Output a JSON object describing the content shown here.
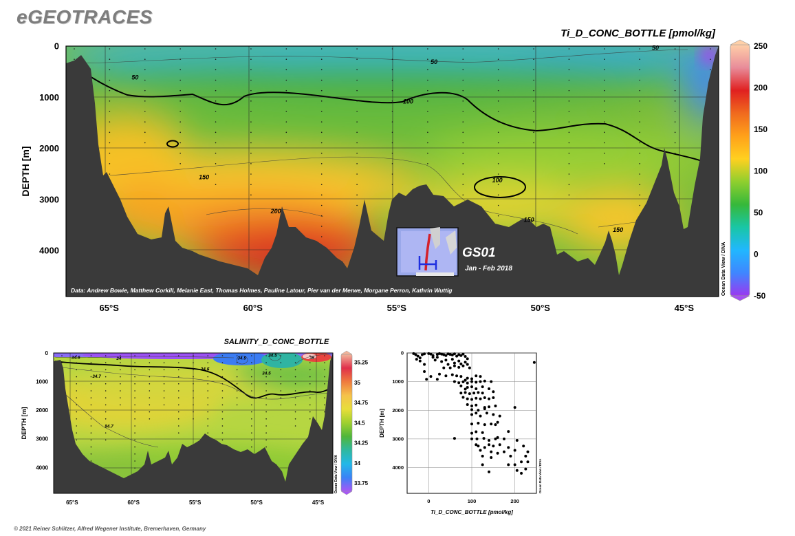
{
  "app_title": "eGEOTRACES",
  "footer": "© 2021 Reiner Schlitzer, Alfred Wegener Institute, Bremerhaven, Germany",
  "watermark": "Ocean Data View / DIVA",
  "chart_data": [
    {
      "type": "heatmap",
      "title": "Ti_D_CONC_BOTTLE [pmol/kg]",
      "ylabel": "DEPTH [m]",
      "xlabel": "",
      "xlim": [
        66.5,
        43.8
      ],
      "ylim": [
        4900,
        0
      ],
      "x_tick_values": [
        65,
        60,
        55,
        50,
        45
      ],
      "x_tick_labels": [
        "65°S",
        "60°S",
        "55°S",
        "50°S",
        "45°S"
      ],
      "y_tick_values": [
        0,
        1000,
        2000,
        3000,
        4000
      ],
      "y_tick_labels": [
        "0",
        "1000",
        "2000",
        "3000",
        "4000"
      ],
      "colorbar": {
        "range": [
          -50,
          250
        ],
        "tick_values": [
          250,
          200,
          150,
          100,
          50,
          0,
          -50
        ],
        "tick_labels": [
          "250",
          "200",
          "150",
          "100",
          "50",
          "0",
          "-50"
        ],
        "colors": [
          "#9b38f0",
          "#3f86ff",
          "#21b7ff",
          "#19c6a6",
          "#36b83a",
          "#8fcf2e",
          "#ffd020",
          "#ffa11a",
          "#f06a1e",
          "#e02020",
          "#e88c9a",
          "#ffcfa8"
        ]
      },
      "contour_labels": [
        {
          "text": "50",
          "x": 64.1,
          "y": 610
        },
        {
          "text": "50",
          "x": 53.7,
          "y": 310
        },
        {
          "text": "50",
          "x": 46.0,
          "y": 30
        },
        {
          "text": "100",
          "x": 54.6,
          "y": 1080
        },
        {
          "text": "100",
          "x": 51.5,
          "y": 2620
        },
        {
          "text": "150",
          "x": 61.7,
          "y": 2560
        },
        {
          "text": "150",
          "x": 50.4,
          "y": 3400
        },
        {
          "text": "150",
          "x": 47.3,
          "y": 3590
        },
        {
          "text": "200",
          "x": 59.2,
          "y": 3230
        }
      ],
      "grid": true,
      "credits": "Data: Andrew Bowie, Matthew Corkill, Melanie East, Thomas Holmes, Pauline Latour, Pier van der Merwe, Morgane Perron, Kathrin Wuttig",
      "inset": {
        "cruise": "GS01",
        "dates": "Jan - Feb 2018"
      }
    },
    {
      "type": "heatmap",
      "title": "SALINITY_D_CONC_BOTTLE",
      "ylabel": "DEPTH [m]",
      "xlim": [
        66.5,
        43.8
      ],
      "ylim": [
        4900,
        0
      ],
      "x_tick_values": [
        65,
        60,
        55,
        50,
        45
      ],
      "x_tick_labels": [
        "65°S",
        "60°S",
        "55°S",
        "50°S",
        "45°S"
      ],
      "y_tick_values": [
        0,
        1000,
        2000,
        3000,
        4000
      ],
      "y_tick_labels": [
        "0",
        "1000",
        "2000",
        "3000",
        "4000"
      ],
      "colorbar": {
        "range": [
          33.65,
          35.35
        ],
        "tick_values": [
          35.25,
          35,
          34.75,
          34.5,
          34.25,
          34,
          33.75
        ],
        "tick_labels": [
          "35.25",
          "35",
          "34.75",
          "34.5",
          "34.25",
          "34",
          "33.75"
        ],
        "colors": [
          "#a855f7",
          "#3b82f6",
          "#22b8e8",
          "#2fb8a0",
          "#4fb63a",
          "#9fd02f",
          "#e8de3a",
          "#f5c24a",
          "#ef7b3e",
          "#e0304a",
          "#f2b49a"
        ]
      },
      "contour_labels": [
        {
          "text": "34.6",
          "x": 64.7,
          "y": 150
        },
        {
          "text": "34",
          "x": 61.2,
          "y": 180
        },
        {
          "text": "34.5",
          "x": 54.2,
          "y": 560
        },
        {
          "text": "34.5",
          "x": 51.2,
          "y": 170
        },
        {
          "text": "34.5",
          "x": 48.7,
          "y": 80
        },
        {
          "text": "34.5",
          "x": 49.2,
          "y": 700
        },
        {
          "text": "35",
          "x": 45.5,
          "y": 160
        },
        {
          "text": "34.7",
          "x": 63.0,
          "y": 810
        },
        {
          "text": "34.7",
          "x": 62.0,
          "y": 2550
        }
      ]
    },
    {
      "type": "scatter",
      "title": "",
      "xlabel": "Ti_D_CONC_BOTTLE [pmol/kg]",
      "ylabel": "DEPTH [m]",
      "xlim": [
        -50,
        250
      ],
      "ylim": [
        4900,
        0
      ],
      "x_tick_values": [
        0,
        100,
        200
      ],
      "x_tick_labels": [
        "0",
        "100",
        "200"
      ],
      "y_tick_values": [
        0,
        1000,
        2000,
        3000,
        4000
      ],
      "y_tick_labels": [
        "0",
        "1000",
        "2000",
        "3000",
        "4000"
      ],
      "points": [
        [
          -35,
          20
        ],
        [
          -30,
          60
        ],
        [
          -25,
          110
        ],
        [
          -20,
          170
        ],
        [
          -15,
          60
        ],
        [
          -10,
          30
        ],
        [
          0,
          20
        ],
        [
          5,
          40
        ],
        [
          10,
          90
        ],
        [
          20,
          50
        ],
        [
          25,
          20
        ],
        [
          30,
          40
        ],
        [
          35,
          60
        ],
        [
          40,
          90
        ],
        [
          45,
          30
        ],
        [
          50,
          50
        ],
        [
          55,
          70
        ],
        [
          60,
          30
        ],
        [
          65,
          110
        ],
        [
          70,
          60
        ],
        [
          75,
          90
        ],
        [
          80,
          40
        ],
        [
          85,
          120
        ],
        [
          -28,
          220
        ],
        [
          -20,
          280
        ],
        [
          -10,
          400
        ],
        [
          20,
          150
        ],
        [
          40,
          250
        ],
        [
          55,
          220
        ],
        [
          70,
          280
        ],
        [
          90,
          200
        ],
        [
          10,
          150
        ],
        [
          15,
          250
        ],
        [
          30,
          300
        ],
        [
          45,
          400
        ],
        [
          50,
          520
        ],
        [
          60,
          450
        ],
        [
          70,
          500
        ],
        [
          75,
          380
        ],
        [
          80,
          450
        ],
        [
          90,
          400
        ],
        [
          95,
          520
        ],
        [
          85,
          320
        ],
        [
          60,
          350
        ],
        [
          35,
          520
        ],
        [
          -10,
          650
        ],
        [
          5,
          820
        ],
        [
          25,
          740
        ],
        [
          40,
          800
        ],
        [
          55,
          760
        ],
        [
          65,
          800
        ],
        [
          75,
          820
        ],
        [
          90,
          880
        ],
        [
          100,
          900
        ],
        [
          110,
          800
        ],
        [
          120,
          820
        ],
        [
          20,
          920
        ],
        [
          -5,
          920
        ],
        [
          85,
          950
        ],
        [
          60,
          1000
        ],
        [
          70,
          1040
        ],
        [
          80,
          1010
        ],
        [
          90,
          1050
        ],
        [
          100,
          1000
        ],
        [
          110,
          1020
        ],
        [
          120,
          1000
        ],
        [
          130,
          980
        ],
        [
          145,
          1000
        ],
        [
          75,
          1150
        ],
        [
          90,
          1200
        ],
        [
          100,
          1180
        ],
        [
          85,
          1260
        ],
        [
          110,
          1250
        ],
        [
          125,
          1180
        ],
        [
          140,
          1250
        ],
        [
          150,
          1350
        ],
        [
          75,
          1400
        ],
        [
          85,
          1380
        ],
        [
          95,
          1420
        ],
        [
          105,
          1400
        ],
        [
          115,
          1380
        ],
        [
          125,
          1400
        ],
        [
          80,
          1550
        ],
        [
          90,
          1600
        ],
        [
          100,
          1620
        ],
        [
          110,
          1580
        ],
        [
          120,
          1600
        ],
        [
          130,
          1560
        ],
        [
          140,
          1600
        ],
        [
          150,
          1560
        ],
        [
          90,
          1800
        ],
        [
          100,
          1850
        ],
        [
          110,
          1820
        ],
        [
          130,
          1900
        ],
        [
          140,
          1880
        ],
        [
          155,
          1850
        ],
        [
          100,
          1980
        ],
        [
          115,
          2000
        ],
        [
          130,
          1950
        ],
        [
          200,
          1900
        ],
        [
          100,
          2150
        ],
        [
          110,
          2100
        ],
        [
          120,
          2200
        ],
        [
          135,
          2100
        ],
        [
          150,
          2150
        ],
        [
          165,
          2200
        ],
        [
          100,
          2480
        ],
        [
          115,
          2450
        ],
        [
          130,
          2500
        ],
        [
          145,
          2480
        ],
        [
          155,
          2500
        ],
        [
          160,
          2420
        ],
        [
          100,
          2800
        ],
        [
          110,
          2750
        ],
        [
          125,
          2780
        ],
        [
          185,
          2740
        ],
        [
          60,
          2980
        ],
        [
          100,
          3000
        ],
        [
          112,
          3000
        ],
        [
          128,
          2980
        ],
        [
          140,
          3050
        ],
        [
          155,
          3000
        ],
        [
          160,
          2950
        ],
        [
          175,
          3000
        ],
        [
          205,
          3050
        ],
        [
          110,
          3200
        ],
        [
          115,
          3250
        ],
        [
          130,
          3300
        ],
        [
          140,
          3200
        ],
        [
          150,
          3250
        ],
        [
          165,
          3200
        ],
        [
          185,
          3300
        ],
        [
          220,
          3250
        ],
        [
          120,
          3400
        ],
        [
          145,
          3450
        ],
        [
          160,
          3500
        ],
        [
          175,
          3450
        ],
        [
          200,
          3400
        ],
        [
          230,
          3450
        ],
        [
          125,
          3600
        ],
        [
          145,
          3650
        ],
        [
          190,
          3600
        ],
        [
          225,
          3600
        ],
        [
          125,
          3900
        ],
        [
          215,
          3800
        ],
        [
          185,
          3900
        ],
        [
          200,
          3900
        ],
        [
          230,
          3800
        ],
        [
          140,
          4150
        ],
        [
          205,
          4100
        ],
        [
          215,
          4200
        ],
        [
          225,
          4050
        ],
        [
          245,
          330
        ]
      ]
    }
  ]
}
